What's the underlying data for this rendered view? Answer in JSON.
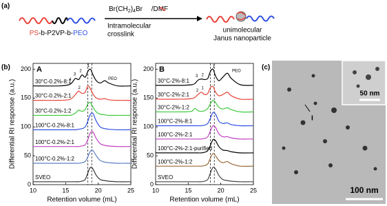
{
  "figure": {
    "panel_a": {
      "label": "(a)",
      "reagent": [
        "Br(CH",
        "2",
        ")",
        "4",
        "Br",
        " /DMF"
      ],
      "arrow_text": [
        "Intramolecular",
        "crosslink"
      ],
      "polymer": [
        "PS",
        "-b-P2VP-b-",
        "PEO"
      ],
      "product": [
        "unimolecular",
        "Janus nanoparticle"
      ]
    },
    "panel_b": {
      "label": "(b)"
    },
    "panel_c": {
      "label": "(c)",
      "inset_scale": "50 nm",
      "scale": "100 nm",
      "marker": "I"
    }
  },
  "chart_data": [
    {
      "type": "line",
      "panel_label": "A",
      "x_label": "Retention volume (mL)",
      "y_label": "Differential RI response (a.u.)",
      "xlim": [
        10,
        25
      ],
      "xticks": [
        10,
        15,
        20,
        25
      ],
      "ylim": [
        0,
        210
      ],
      "yticks": [
        0,
        50,
        100,
        150,
        200
      ],
      "ref_lines": [
        18.4,
        19
      ],
      "x": [
        10,
        14,
        15.5,
        16,
        16.5,
        17,
        17.5,
        18,
        18.4,
        18.8,
        19.2,
        19.7,
        20.3,
        21,
        21.6,
        23,
        25
      ],
      "series": [
        {
          "name": "30°C-0.2%-8:1",
          "color": "#000000",
          "values": [
            171,
            171,
            173,
            177,
            184,
            182,
            190,
            186,
            196,
            200,
            190,
            180,
            176,
            180,
            176,
            171,
            171
          ]
        },
        {
          "name": "30°C-0.2%-2:1",
          "color": "#e8443a",
          "values": [
            146,
            146,
            147,
            150,
            156,
            162,
            158,
            160,
            171,
            166,
            157,
            150,
            148,
            149,
            147,
            146,
            146
          ]
        },
        {
          "name": "30°C-0.2%-1:2",
          "color": "#3cc83c",
          "values": [
            120,
            120,
            120,
            121,
            124,
            129,
            127,
            130,
            140,
            142,
            134,
            126,
            122,
            121,
            120,
            120,
            120
          ]
        },
        {
          "name": "100°C-0.2%-8:1",
          "color": "#3050e0",
          "values": [
            95,
            95,
            95,
            95,
            95,
            96,
            97,
            100,
            110,
            122,
            123,
            110,
            100,
            97,
            96,
            95,
            95
          ]
        },
        {
          "name": "100°C-0.2%-2:1",
          "color": "#c040c0",
          "values": [
            66,
            66,
            66,
            66,
            66,
            66,
            67,
            69,
            78,
            90,
            91,
            80,
            71,
            68,
            67,
            66,
            66
          ]
        },
        {
          "name": "100°C-0.2%-1:2",
          "color": "#5a7fbf",
          "values": [
            37,
            37,
            37,
            37,
            37,
            37,
            38,
            40,
            48,
            58,
            59,
            50,
            42,
            39,
            38,
            37,
            37
          ]
        },
        {
          "name": "SVEO",
          "color": "#333333",
          "values": [
            5,
            5,
            5,
            5,
            5,
            5,
            6,
            9,
            20,
            30,
            27,
            16,
            9,
            7,
            6,
            5,
            5
          ]
        }
      ],
      "annotations": [
        {
          "text": "4",
          "x": 15.7,
          "y": 182
        },
        {
          "text": "3",
          "x": 16.4,
          "y": 191
        },
        {
          "text": "2",
          "x": 17.3,
          "y": 197
        },
        {
          "text": "1",
          "x": 18.5,
          "y": 206
        },
        {
          "text": "PEO",
          "x": 22.2,
          "y": 183
        },
        {
          "text": "2",
          "x": 17.1,
          "y": 168
        }
      ]
    },
    {
      "type": "line",
      "panel_label": "B",
      "x_label": "Retention volume (mL)",
      "y_label": "Differential RI response (a.u.)",
      "xlim": [
        10,
        25
      ],
      "xticks": [
        10,
        15,
        20,
        25
      ],
      "ylim": [
        0,
        210
      ],
      "yticks": [
        0,
        50,
        100,
        150,
        200
      ],
      "ref_lines": [
        18.4,
        19
      ],
      "x": [
        10,
        14,
        15.5,
        16,
        16.5,
        17,
        17.5,
        18,
        18.4,
        18.8,
        19.2,
        19.7,
        20.3,
        21,
        21.6,
        23,
        25
      ],
      "series": [
        {
          "name": "30°C-2%-8:1",
          "color": "#000000",
          "values": [
            172,
            172,
            173,
            175,
            181,
            183,
            182,
            184,
            196,
            200,
            188,
            180,
            186,
            193,
            184,
            173,
            172
          ]
        },
        {
          "name": "30°C-2%-2:1",
          "color": "#e8443a",
          "values": [
            148,
            148,
            149,
            151,
            156,
            160,
            156,
            158,
            168,
            170,
            160,
            154,
            156,
            160,
            154,
            148,
            148
          ]
        },
        {
          "name": "30°C-2%-1:2",
          "color": "#3cc83c",
          "values": [
            126,
            126,
            127,
            132,
            128,
            127,
            128,
            132,
            140,
            146,
            142,
            134,
            131,
            133,
            130,
            126,
            126
          ]
        },
        {
          "name": "100°C-2%-8:1",
          "color": "#3050e0",
          "values": [
            102,
            102,
            102,
            102,
            102,
            102,
            103,
            106,
            115,
            125,
            122,
            110,
            106,
            107,
            104,
            102,
            102
          ]
        },
        {
          "name": "100°C-2%-2:1",
          "color": "#c040c0",
          "values": [
            79,
            79,
            79,
            79,
            79,
            79,
            80,
            83,
            93,
            102,
            99,
            88,
            83,
            83,
            81,
            79,
            79
          ]
        },
        {
          "name": "100°C-2%-2:1-purified",
          "color": "#000000",
          "values": [
            55,
            55,
            55,
            55,
            55,
            55,
            56,
            59,
            68,
            78,
            76,
            66,
            60,
            59,
            57,
            55,
            55
          ]
        },
        {
          "name": "100°C-2%-1:2",
          "color": "#9a6a3a",
          "values": [
            32,
            32,
            32,
            32,
            32,
            32,
            33,
            36,
            46,
            54,
            50,
            42,
            38,
            40,
            36,
            32,
            32
          ]
        },
        {
          "name": "SVEO",
          "color": "#444444",
          "values": [
            5,
            5,
            5,
            5,
            5,
            5,
            6,
            9,
            20,
            30,
            27,
            16,
            9,
            7,
            6,
            5,
            5
          ]
        }
      ],
      "annotations": [
        {
          "text": "3",
          "x": 16.3,
          "y": 188
        },
        {
          "text": "2",
          "x": 17.2,
          "y": 190
        },
        {
          "text": "1",
          "x": 18.9,
          "y": 205
        },
        {
          "text": "PEO",
          "x": 22.4,
          "y": 197
        },
        {
          "text": "2",
          "x": 16.4,
          "y": 163
        },
        {
          "text": "1",
          "x": 17.2,
          "y": 167
        }
      ]
    }
  ]
}
